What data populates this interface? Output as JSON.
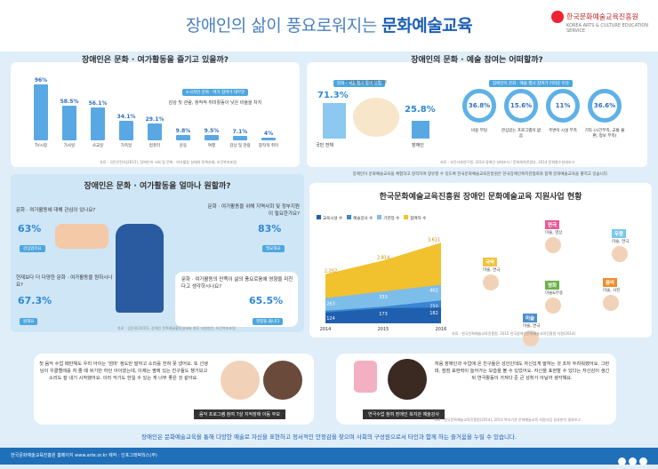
{
  "header": {
    "title_plain": "장애인의 삶이 풍요로워지는 ",
    "title_bold": "문화예술교육",
    "logo_text": "한국문화예술교육진흥원",
    "logo_sub": "KOREA ARTS & CULTURE EDUCATION SERVICE"
  },
  "section1": {
    "title": "장애인은 문화 · 여가활동을 즐기고 있을까?",
    "note_badge": "소극적인  문화 · 여가  참여가 대부분",
    "note_text": "감상 및 관람, 창작적 취미활동이 낮은 비율을 차지",
    "source": "자료 : 국민안전처(2015), 장애인의 사회 및 문화 · 여가활동 실태와 정책과제, 보건복지포럼"
  },
  "section2": {
    "title": "장애인의 문화 · 예술 참여는 어떠할까?",
    "left_badge": "문화 · 예술 행사 참여 경험",
    "left_note": "* 연1회 이상 경험자 기준",
    "left_a_pct": "71.3%",
    "left_a_label": "국민 전체",
    "left_b_pct": "25.8%",
    "left_b_label": "장애인",
    "right_badge": "장애인이 문화 · 예술 행사 참여가 어려운 이유",
    "donuts": [
      {
        "pct": "36.8%",
        "label": "비용 부담"
      },
      {
        "pct": "15.6%",
        "label": "관심있는 프로그램이 없음"
      },
      {
        "pct": "11%",
        "label": "주변이 시설 부족"
      },
      {
        "pct": "36.6%",
        "label": "기타 (시간부족, 교통 불편, 정보 부족)"
      }
    ],
    "source": "자료 : 보건사회연구원, 2014 장애인 실태조사 / 문화체육관광부, 2014 문화향수실태조사"
  },
  "section3": {
    "title": "장애인은 문화 · 여가활동을 얼마나 원할까?",
    "q1": "문화 · 여가활동에 대해 관심이 있나요?",
    "q1_pct": "63%",
    "q1_tag": "관심있어요",
    "q2": "문화 · 여가활동을 위해 지역사회 및 정부지원이 필요한가요?",
    "q2_pct": "83%",
    "q2_tag": "필요해요",
    "q3": "현재보다 더 다양한 문화 · 여가활동을 원하시나요?",
    "q3_pct": "67.3%",
    "q3_tag": "원해요",
    "q4": "문화 · 여가활동의 만족이 삶의 풍요로움에 영향을 미친다고 생각하시나요?",
    "q4_pct": "65.5%",
    "q4_tag": "영향을 줍니다",
    "source": "자료 : 김은정(2015), 장애인 문화예술활동실태와 향후 지원방안, 보건복지포럼"
  },
  "section4": {
    "intro": "장애인이 문화예술교육을 체험하고 창작하며 향유할 수 있도록 한국문화예술교육진흥원은 한국장애인복지관협회와 함께 문화예술교육을 펼치고 있습니다.",
    "title": "한국문화예술교육진흥원 장애인 문화예술교육 지원사업 현황",
    "legend": [
      "교육시설 수",
      "예술강사 수",
      "기관장 수",
      "참여자 수"
    ],
    "figures": [
      {
        "name": "국악",
        "sub": "미술, 연극"
      },
      {
        "name": "연극",
        "sub": "미술, 영상"
      },
      {
        "name": "무용",
        "sub": "미술, 연극"
      },
      {
        "name": "영화",
        "sub": "미술&무용"
      },
      {
        "name": "음악",
        "sub": "미술, 사진"
      },
      {
        "name": "미술",
        "sub": "미술, 연극"
      }
    ],
    "source": "자료 : 한국문화예술교육진흥원, 2015 전국장애인문화예술교육진흥원 지원(2014)"
  },
  "chart_data": {
    "type": "area",
    "categories": [
      "2014",
      "2015",
      "2016"
    ],
    "series": [
      {
        "name": "교육시설 수",
        "values": [
          124,
          173,
          182
        ]
      },
      {
        "name": "예술강사 수",
        "values": [
          137,
          182,
          250
        ]
      },
      {
        "name": "기관장 수",
        "values": [
          263,
          333,
          402
        ]
      },
      {
        "name": "참여자 수",
        "values": [
          2202,
          2814,
          3611
        ]
      }
    ],
    "colors": [
      "#1f5fae",
      "#3a86d1",
      "#7dbde9",
      "#f2c12e"
    ]
  },
  "quote1": {
    "text": "첫 음악 수업 때만해도 우리 아이는 '엄마' 정도만 말하고 소리를 전혀 못 냈어요. 또 선생님이 우클렐레를 처 줄 때 뒤기만 하던 아이였는데, 이제는 옆에 있는 친구들도 챙기보고 소리도 잘 내기 시작했어요. 이러 악기도 한일 수 있는 게 너무 좋은 것 같아요.",
    "caption": "음악 프로그램 참여 7살 지적장애 아동 부모"
  },
  "quote2": {
    "text": "처음 장애인과 수업에 온 친구들은 성인인데도 자신있게 말하는 것 조차 두려워했어요. 그런데, 점점 표현력이 늘어가는 모습을 볼 수 있었어요. 자신을 표현할 수 있다는 자신감이 생긴 뒤 연극활동이 가져다 준 큰 성취가 아닐까 생각해요.",
    "caption": "연극수업 참여 장애인 복지관 예술강사",
    "source": "자료 : 한국문화예술교육진흥원(2014), 2014 복지기관 문화예술교육 지원사업 성과분석 결과보고"
  },
  "bottom_message": "장애인은 문화예술교육을 통해 다양한 예술로 자신을 표현하고 정서적인 안정감을 찾으며 사회의 구성원으로서 타인과 함께 하는 즐거움을 누릴 수 있습니다.",
  "footer": {
    "text": "한국문화예술교육진흥원 홈페이지  www.arte.or.kr        제작 : 인포그래픽웍스(주)"
  }
}
